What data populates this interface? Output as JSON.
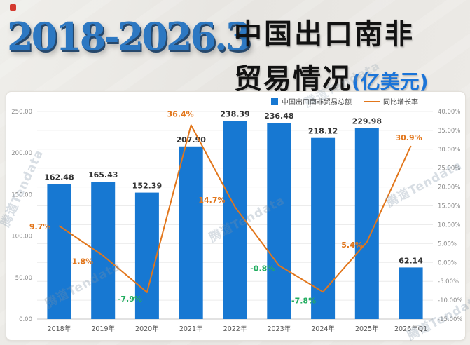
{
  "header": {
    "title_years": "2018-2026.3",
    "title_cn_1": "中国出口南非",
    "title_cn_2": "贸易情况",
    "title_unit": "(亿美元)"
  },
  "watermark": "腾道Tendata",
  "legend": {
    "bars": "中国出口南非贸易总额",
    "line": "同比增长率"
  },
  "colors": {
    "bar": "#1778d2",
    "line": "#e2761b",
    "positive": "#e2761b",
    "negative": "#22ad60",
    "title_blue": "#2d78c2",
    "unit_blue": "#1b74d8"
  },
  "chart_data": {
    "type": "bar",
    "title": "2018-2026.3 中国出口南非贸易情况(亿美元)",
    "categories": [
      "2018年",
      "2019年",
      "2020年",
      "2021年",
      "2022年",
      "2023年",
      "2024年",
      "2025年",
      "2026年Q1"
    ],
    "series": [
      {
        "name": "中国出口南非贸易总额",
        "type": "bar",
        "axis": "left",
        "color": "#1778d2",
        "values": [
          162.48,
          165.43,
          152.39,
          207.9,
          238.39,
          236.48,
          218.12,
          229.98,
          62.14
        ]
      },
      {
        "name": "同比增长率",
        "type": "line",
        "axis": "right",
        "unit": "%",
        "color": "#e2761b",
        "values": [
          9.7,
          1.8,
          -7.9,
          36.4,
          14.7,
          -0.8,
          -7.8,
          5.4,
          30.9
        ]
      }
    ],
    "left_axis": {
      "min": 0,
      "max": 250,
      "ticks": [
        250,
        200,
        150,
        100,
        50,
        0
      ],
      "labels": [
        "250.00",
        "200.00",
        "150.00",
        "100.00",
        "50.00",
        "0.00"
      ]
    },
    "right_axis": {
      "min": -15,
      "max": 40,
      "ticks": [
        40,
        35,
        30,
        25,
        20,
        15,
        10,
        5,
        0,
        -5,
        -10,
        -15
      ],
      "labels": [
        "40.00%",
        "35.00%",
        "30.00%",
        "25.00%",
        "20.00%",
        "15.00%",
        "10.00%",
        "5.00%",
        "0.00%",
        "-5.00%",
        "-10.00%",
        "-15.00%"
      ]
    },
    "grid": true,
    "legend_position": "top"
  }
}
